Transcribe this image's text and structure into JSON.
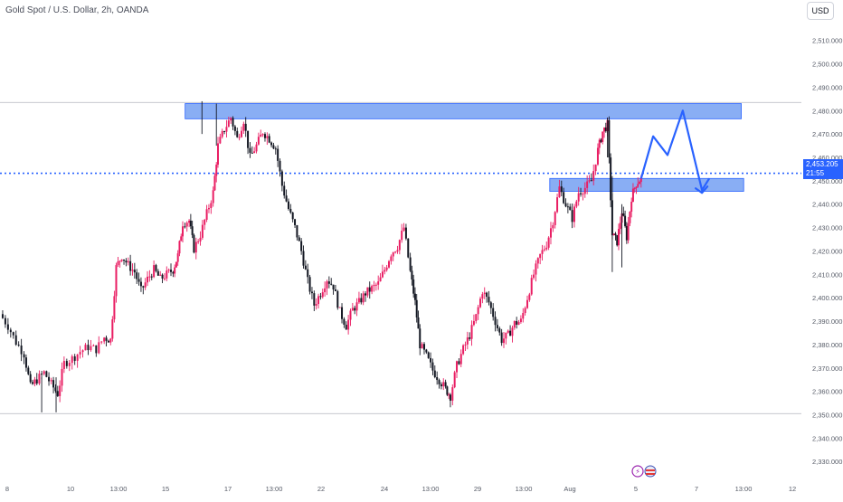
{
  "header": {
    "title": "Gold Spot / U.S. Dollar, 2h, OANDA",
    "currency_button": "USD"
  },
  "price_tag": {
    "price": "2,453.205",
    "countdown": "21:55"
  },
  "colors": {
    "up": "#e91e63",
    "down": "#131722",
    "zone_fill": "#5b8ff0",
    "zone_border": "#2962ff",
    "arrow": "#2962ff",
    "level_line": "#2962ff"
  },
  "chart_data": {
    "type": "candlestick",
    "symbol": "Gold Spot / U.S. Dollar",
    "interval": "2h",
    "source": "OANDA",
    "currency": "USD",
    "x_ticks": [
      "8",
      "10",
      "13:00",
      "15",
      "17",
      "13:00",
      "22",
      "24",
      "13:00",
      "29",
      "13:00",
      "Aug",
      "5",
      "7",
      "13:00",
      "12"
    ],
    "y_ticks": [
      "2,510.000",
      "2,500.000",
      "2,490.000",
      "2,480.000",
      "2,470.000",
      "2,460.000",
      "2,450.000",
      "2,440.000",
      "2,430.000",
      "2,420.000",
      "2,410.000",
      "2,400.000",
      "2,390.000",
      "2,380.000",
      "2,370.000",
      "2,360.000",
      "2,350.000",
      "2,340.000",
      "2,330.000"
    ],
    "ylim": [
      2327,
      2518
    ],
    "current_price": 2453.205,
    "horizontal_levels": [
      2483.5,
      2350.5
    ],
    "zones": [
      {
        "name": "resistance",
        "x_from": 0.231,
        "x_to": 0.925,
        "y_high": 2483,
        "y_low": 2476.5
      },
      {
        "name": "support",
        "x_from": 0.686,
        "x_to": 0.928,
        "y_high": 2451,
        "y_low": 2445.5
      }
    ],
    "projection_path": [
      [
        0.8,
        2451
      ],
      [
        0.815,
        2469
      ],
      [
        0.833,
        2461
      ],
      [
        0.852,
        2480
      ],
      [
        0.876,
        2446
      ],
      [
        0.885,
        2451
      ]
    ],
    "price_path": [
      [
        0.0,
        2393
      ],
      [
        0.01,
        2388
      ],
      [
        0.02,
        2381
      ],
      [
        0.03,
        2376
      ],
      [
        0.038,
        2362
      ],
      [
        0.046,
        2365
      ],
      [
        0.055,
        2368
      ],
      [
        0.064,
        2363
      ],
      [
        0.072,
        2359
      ],
      [
        0.08,
        2372
      ],
      [
        0.09,
        2374
      ],
      [
        0.1,
        2377
      ],
      [
        0.11,
        2379
      ],
      [
        0.12,
        2378
      ],
      [
        0.13,
        2383
      ],
      [
        0.138,
        2382
      ],
      [
        0.145,
        2413
      ],
      [
        0.152,
        2418
      ],
      [
        0.16,
        2414
      ],
      [
        0.168,
        2411
      ],
      [
        0.176,
        2403
      ],
      [
        0.184,
        2408
      ],
      [
        0.192,
        2412
      ],
      [
        0.2,
        2408
      ],
      [
        0.208,
        2410
      ],
      [
        0.216,
        2412
      ],
      [
        0.222,
        2418
      ],
      [
        0.228,
        2432
      ],
      [
        0.236,
        2433
      ],
      [
        0.242,
        2421
      ],
      [
        0.25,
        2427
      ],
      [
        0.258,
        2436
      ],
      [
        0.266,
        2445
      ],
      [
        0.272,
        2465
      ],
      [
        0.28,
        2472
      ],
      [
        0.288,
        2477
      ],
      [
        0.296,
        2468
      ],
      [
        0.304,
        2476
      ],
      [
        0.312,
        2460
      ],
      [
        0.32,
        2465
      ],
      [
        0.328,
        2471
      ],
      [
        0.336,
        2468
      ],
      [
        0.344,
        2464
      ],
      [
        0.352,
        2448
      ],
      [
        0.36,
        2438
      ],
      [
        0.368,
        2430
      ],
      [
        0.376,
        2420
      ],
      [
        0.384,
        2407
      ],
      [
        0.392,
        2397
      ],
      [
        0.4,
        2402
      ],
      [
        0.408,
        2408
      ],
      [
        0.416,
        2405
      ],
      [
        0.424,
        2394
      ],
      [
        0.432,
        2388
      ],
      [
        0.44,
        2395
      ],
      [
        0.448,
        2398
      ],
      [
        0.456,
        2402
      ],
      [
        0.464,
        2404
      ],
      [
        0.472,
        2406
      ],
      [
        0.48,
        2412
      ],
      [
        0.488,
        2419
      ],
      [
        0.496,
        2422
      ],
      [
        0.504,
        2430
      ],
      [
        0.512,
        2411
      ],
      [
        0.518,
        2398
      ],
      [
        0.524,
        2380
      ],
      [
        0.532,
        2375
      ],
      [
        0.54,
        2369
      ],
      [
        0.548,
        2365
      ],
      [
        0.556,
        2361
      ],
      [
        0.562,
        2358
      ],
      [
        0.57,
        2371
      ],
      [
        0.578,
        2378
      ],
      [
        0.586,
        2384
      ],
      [
        0.594,
        2392
      ],
      [
        0.602,
        2403
      ],
      [
        0.61,
        2398
      ],
      [
        0.618,
        2390
      ],
      [
        0.626,
        2382
      ],
      [
        0.634,
        2384
      ],
      [
        0.642,
        2389
      ],
      [
        0.65,
        2390
      ],
      [
        0.658,
        2400
      ],
      [
        0.666,
        2410
      ],
      [
        0.674,
        2418
      ],
      [
        0.682,
        2423
      ],
      [
        0.69,
        2433
      ],
      [
        0.698,
        2447
      ],
      [
        0.706,
        2440
      ],
      [
        0.714,
        2434
      ],
      [
        0.722,
        2445
      ],
      [
        0.73,
        2447
      ],
      [
        0.738,
        2450
      ],
      [
        0.746,
        2463
      ],
      [
        0.752,
        2471
      ],
      [
        0.758,
        2474
      ],
      [
        0.764,
        2427
      ],
      [
        0.77,
        2424
      ],
      [
        0.776,
        2437
      ],
      [
        0.782,
        2426
      ],
      [
        0.788,
        2443
      ],
      [
        0.794,
        2449
      ],
      [
        0.8,
        2451
      ]
    ]
  }
}
